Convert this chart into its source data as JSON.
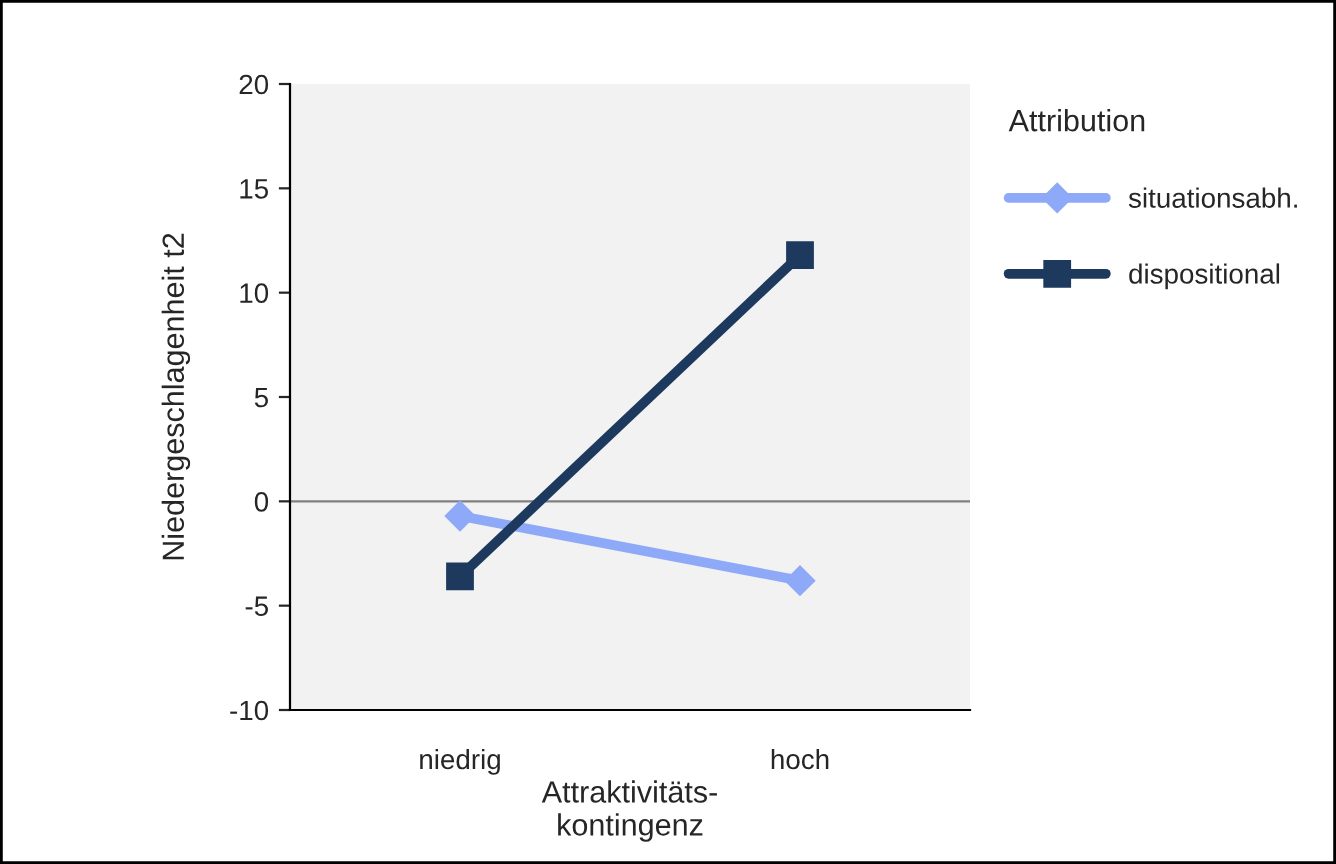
{
  "chart_data": {
    "type": "line",
    "categories": [
      "niedrig",
      "hoch"
    ],
    "series": [
      {
        "name": "situationsabh.",
        "color": "#8ea9f7",
        "marker": "diamond",
        "values": [
          -0.7,
          -3.8
        ]
      },
      {
        "name": "dispositional",
        "color": "#1d3a5e",
        "marker": "square",
        "values": [
          -3.6,
          11.8
        ]
      }
    ],
    "xlabel": "Attraktivitäts-\nkontingenz",
    "ylabel": "Niedergeschlagenheit t2",
    "legend_title": "Attribution",
    "ylim": [
      -10,
      20
    ],
    "yticks": [
      -10,
      -5,
      0,
      5,
      10,
      15,
      20
    ],
    "ref_lines": [
      {
        "axis": "y",
        "value": 0,
        "color": "#808080"
      }
    ],
    "legend": "right",
    "grid": false,
    "line_style": "solid"
  }
}
